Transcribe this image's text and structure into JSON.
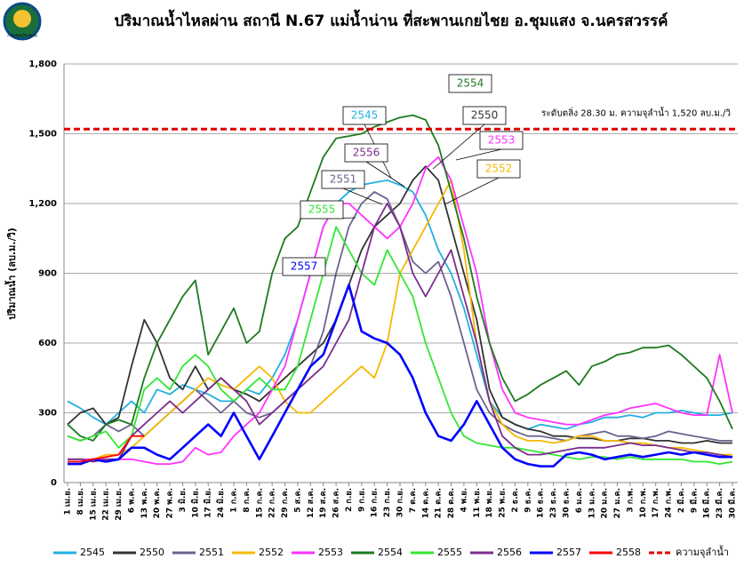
{
  "logo": "กรมชลประทาน",
  "chart_data": {
    "type": "line",
    "title": "ปริมาณน้ำไหลผ่าน สถานี N.67 แม่น้ำน่าน ที่สะพานเกยไชย อ.ชุมแสง จ.นครสวรรค์",
    "ylabel": "ปริมาณน้ำ (ลบ.ม./วิ)",
    "ylim": [
      0,
      1800
    ],
    "yticks": [
      0,
      300,
      600,
      900,
      {
        "value": 1200,
        "label": "1,200"
      },
      {
        "value": 1500,
        "label": "1,500"
      },
      {
        "value": 1800,
        "label": "1,800"
      }
    ],
    "grid": true,
    "categories": [
      "1 เม.ย.",
      "8 เม.ย.",
      "15 เม.ย.",
      "22 เม.ย.",
      "29 เม.ย.",
      "6 พ.ค.",
      "13 พ.ค.",
      "20 พ.ค.",
      "27 พ.ค.",
      "3 มิ.ย.",
      "10 มิ.ย.",
      "17 มิ.ย.",
      "24 มิ.ย.",
      "1 ก.ค.",
      "8 ก.ค.",
      "15 ก.ค.",
      "22 ก.ค.",
      "29 ก.ค.",
      "5 ส.ค.",
      "12 ส.ค.",
      "19 ส.ค.",
      "26 ส.ค.",
      "2 ก.ย.",
      "9 ก.ย.",
      "16 ก.ย.",
      "23 ก.ย.",
      "30 ก.ย.",
      "7 ต.ค.",
      "14 ต.ค.",
      "21 ต.ค.",
      "28 ต.ค.",
      "4 พ.ย.",
      "11 พ.ย.",
      "18 พ.ย.",
      "25 พ.ย.",
      "2 ธ.ค.",
      "9 ธ.ค.",
      "16 ธ.ค.",
      "23 ธ.ค.",
      "30 ธ.ค.",
      "6 ม.ค.",
      "13 ม.ค.",
      "20 ม.ค.",
      "27 ม.ค.",
      "3 ก.พ.",
      "10 ก.พ.",
      "17 ก.พ.",
      "24 ก.พ.",
      "2 มี.ค.",
      "9 มี.ค.",
      "16 มี.ค.",
      "23 มี.ค.",
      "30 มี.ค."
    ],
    "series": [
      {
        "name": "2545",
        "color": "#22b0e0",
        "values": [
          350,
          320,
          280,
          250,
          300,
          350,
          300,
          400,
          380,
          420,
          400,
          380,
          350,
          350,
          400,
          380,
          450,
          550,
          700,
          900,
          1100,
          1200,
          1250,
          1280,
          1290,
          1300,
          1280,
          1250,
          1150,
          1000,
          900,
          750,
          550,
          350,
          280,
          250,
          230,
          250,
          240,
          230,
          250,
          260,
          280,
          280,
          290,
          280,
          300,
          300,
          310,
          300,
          290,
          290,
          300
        ]
      },
      {
        "name": "2550",
        "color": "#333333",
        "values": [
          250,
          300,
          320,
          250,
          280,
          500,
          700,
          600,
          450,
          400,
          500,
          400,
          450,
          400,
          380,
          350,
          400,
          450,
          500,
          550,
          600,
          700,
          850,
          1000,
          1100,
          1150,
          1200,
          1300,
          1360,
          1300,
          1100,
          900,
          700,
          400,
          280,
          250,
          230,
          220,
          200,
          200,
          190,
          190,
          180,
          180,
          190,
          190,
          180,
          180,
          170,
          170,
          180,
          170,
          170
        ]
      },
      {
        "name": "2551",
        "color": "#6e6290",
        "values": [
          200,
          180,
          200,
          250,
          220,
          250,
          200,
          250,
          300,
          350,
          400,
          350,
          300,
          350,
          300,
          280,
          300,
          350,
          400,
          500,
          650,
          900,
          1100,
          1200,
          1250,
          1220,
          1100,
          950,
          900,
          950,
          800,
          600,
          400,
          300,
          250,
          220,
          200,
          200,
          190,
          180,
          200,
          210,
          220,
          200,
          200,
          190,
          200,
          220,
          210,
          200,
          190,
          180,
          180
        ]
      },
      {
        "name": "2552",
        "color": "#f5b800",
        "values": [
          100,
          100,
          100,
          120,
          120,
          150,
          200,
          250,
          300,
          350,
          400,
          450,
          420,
          400,
          450,
          500,
          450,
          350,
          300,
          300,
          350,
          400,
          450,
          500,
          450,
          600,
          900,
          1000,
          1100,
          1200,
          1300,
          1000,
          600,
          350,
          250,
          200,
          180,
          180,
          170,
          180,
          200,
          200,
          180,
          180,
          170,
          170,
          160,
          150,
          150,
          140,
          130,
          120,
          120
        ]
      },
      {
        "name": "2553",
        "color": "#ff33ff",
        "values": [
          100,
          100,
          100,
          100,
          100,
          100,
          90,
          80,
          80,
          90,
          150,
          120,
          130,
          200,
          250,
          300,
          400,
          500,
          700,
          900,
          1100,
          1200,
          1200,
          1150,
          1100,
          1050,
          1100,
          1200,
          1350,
          1400,
          1300,
          1100,
          900,
          600,
          400,
          300,
          280,
          270,
          260,
          250,
          250,
          270,
          290,
          300,
          320,
          330,
          340,
          320,
          300,
          290,
          290,
          550,
          300
        ]
      },
      {
        "name": "2554",
        "color": "#1f7a1f",
        "values": [
          250,
          200,
          180,
          250,
          270,
          250,
          450,
          600,
          700,
          800,
          870,
          550,
          650,
          750,
          600,
          650,
          900,
          1050,
          1100,
          1250,
          1400,
          1480,
          1490,
          1500,
          1530,
          1550,
          1570,
          1580,
          1560,
          1450,
          1250,
          1050,
          800,
          600,
          450,
          350,
          380,
          420,
          450,
          480,
          420,
          500,
          520,
          550,
          560,
          580,
          580,
          590,
          550,
          500,
          450,
          350,
          230
        ]
      },
      {
        "name": "2555",
        "color": "#33e633",
        "values": [
          200,
          180,
          200,
          220,
          150,
          200,
          400,
          450,
          400,
          500,
          550,
          500,
          400,
          350,
          400,
          450,
          400,
          400,
          500,
          700,
          900,
          1100,
          1000,
          900,
          850,
          1000,
          900,
          800,
          600,
          450,
          300,
          200,
          170,
          160,
          150,
          150,
          140,
          130,
          120,
          110,
          100,
          110,
          110,
          100,
          110,
          100,
          100,
          100,
          100,
          90,
          90,
          80,
          90
        ]
      },
      {
        "name": "2556",
        "color": "#7a2e8c",
        "values": [
          100,
          100,
          90,
          100,
          100,
          200,
          250,
          300,
          350,
          300,
          350,
          400,
          450,
          400,
          350,
          250,
          300,
          350,
          400,
          450,
          500,
          600,
          700,
          900,
          1100,
          1200,
          1100,
          900,
          800,
          900,
          1000,
          800,
          600,
          350,
          200,
          150,
          120,
          120,
          130,
          140,
          150,
          150,
          150,
          160,
          170,
          160,
          160,
          150,
          140,
          130,
          130,
          120,
          110
        ]
      },
      {
        "name": "2557",
        "color": "#0000ff",
        "values": [
          80,
          80,
          100,
          90,
          100,
          150,
          150,
          120,
          100,
          150,
          200,
          250,
          200,
          300,
          200,
          100,
          200,
          300,
          400,
          500,
          550,
          700,
          850,
          650,
          620,
          600,
          550,
          450,
          300,
          200,
          180,
          250,
          350,
          250,
          150,
          100,
          80,
          70,
          70,
          120,
          130,
          120,
          100,
          110,
          120,
          110,
          120,
          130,
          120,
          130,
          120,
          110,
          110
        ]
      },
      {
        "name": "2558",
        "color": "#ff0000",
        "values": [
          90,
          90,
          100,
          110,
          120,
          200,
          200,
          null,
          null,
          null,
          null,
          null,
          null,
          null,
          null,
          null,
          null,
          null,
          null,
          null,
          null,
          null,
          null,
          null,
          null,
          null,
          null,
          null,
          null,
          null,
          null,
          null,
          null,
          null,
          null,
          null,
          null,
          null,
          null,
          null,
          null,
          null,
          null,
          null,
          null,
          null,
          null,
          null,
          null,
          null,
          null,
          null,
          null
        ]
      }
    ],
    "capacity": {
      "name": "ความจุลำน้ำ",
      "value": 1520,
      "label": "ระดับตลิ่ง 28.30 ม. ความจุลำน้ำ 1,520 ลบ.ม./วิ",
      "color": "#e00000"
    }
  }
}
